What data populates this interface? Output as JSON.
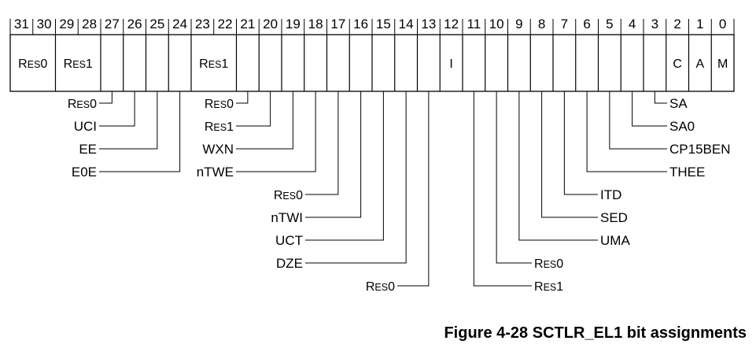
{
  "figure": {
    "caption": "Figure 4-28 SCTLR_EL1 bit assignments"
  },
  "bit_numbers": [
    "31",
    "30",
    "29",
    "28",
    "27",
    "26",
    "25",
    "24",
    "23",
    "22",
    "21",
    "20",
    "19",
    "18",
    "17",
    "16",
    "15",
    "14",
    "13",
    "12",
    "11",
    "10",
    "9",
    "8",
    "7",
    "6",
    "5",
    "4",
    "3",
    "2",
    "1",
    "0"
  ],
  "fields": [
    {
      "hi": 31,
      "lo": 30,
      "label": "RES0"
    },
    {
      "hi": 29,
      "lo": 28,
      "label": "RES1"
    },
    {
      "hi": 27,
      "lo": 27,
      "label": ""
    },
    {
      "hi": 26,
      "lo": 26,
      "label": ""
    },
    {
      "hi": 25,
      "lo": 25,
      "label": ""
    },
    {
      "hi": 24,
      "lo": 24,
      "label": ""
    },
    {
      "hi": 23,
      "lo": 22,
      "label": "RES1"
    },
    {
      "hi": 21,
      "lo": 21,
      "label": ""
    },
    {
      "hi": 20,
      "lo": 20,
      "label": ""
    },
    {
      "hi": 19,
      "lo": 19,
      "label": ""
    },
    {
      "hi": 18,
      "lo": 18,
      "label": ""
    },
    {
      "hi": 17,
      "lo": 17,
      "label": ""
    },
    {
      "hi": 16,
      "lo": 16,
      "label": ""
    },
    {
      "hi": 15,
      "lo": 15,
      "label": ""
    },
    {
      "hi": 14,
      "lo": 14,
      "label": ""
    },
    {
      "hi": 13,
      "lo": 13,
      "label": ""
    },
    {
      "hi": 12,
      "lo": 12,
      "label": "I"
    },
    {
      "hi": 11,
      "lo": 11,
      "label": ""
    },
    {
      "hi": 10,
      "lo": 10,
      "label": ""
    },
    {
      "hi": 9,
      "lo": 9,
      "label": ""
    },
    {
      "hi": 8,
      "lo": 8,
      "label": ""
    },
    {
      "hi": 7,
      "lo": 7,
      "label": ""
    },
    {
      "hi": 6,
      "lo": 6,
      "label": ""
    },
    {
      "hi": 5,
      "lo": 5,
      "label": ""
    },
    {
      "hi": 4,
      "lo": 4,
      "label": ""
    },
    {
      "hi": 3,
      "lo": 3,
      "label": ""
    },
    {
      "hi": 2,
      "lo": 2,
      "label": "C"
    },
    {
      "hi": 1,
      "lo": 1,
      "label": "A"
    },
    {
      "hi": 0,
      "lo": 0,
      "label": "M"
    }
  ],
  "callouts": [
    {
      "bit": 27,
      "label": "RES0",
      "side": "left",
      "row": 0
    },
    {
      "bit": 26,
      "label": "UCI",
      "side": "left",
      "row": 1
    },
    {
      "bit": 25,
      "label": "EE",
      "side": "left",
      "row": 2
    },
    {
      "bit": 24,
      "label": "E0E",
      "side": "left",
      "row": 3
    },
    {
      "bit": 21,
      "label": "RES0",
      "side": "left",
      "row": 0
    },
    {
      "bit": 20,
      "label": "RES1",
      "side": "left",
      "row": 1
    },
    {
      "bit": 19,
      "label": "WXN",
      "side": "left",
      "row": 2
    },
    {
      "bit": 18,
      "label": "nTWE",
      "side": "left",
      "row": 3
    },
    {
      "bit": 17,
      "label": "RES0",
      "side": "left",
      "row": 4
    },
    {
      "bit": 16,
      "label": "nTWI",
      "side": "left",
      "row": 5
    },
    {
      "bit": 15,
      "label": "UCT",
      "side": "left",
      "row": 6
    },
    {
      "bit": 14,
      "label": "DZE",
      "side": "left",
      "row": 7
    },
    {
      "bit": 13,
      "label": "RES0",
      "side": "left",
      "row": 8
    },
    {
      "bit": 11,
      "label": "RES1",
      "side": "right",
      "row": 8
    },
    {
      "bit": 10,
      "label": "RES0",
      "side": "right",
      "row": 7
    },
    {
      "bit": 9,
      "label": "UMA",
      "side": "right",
      "row": 6
    },
    {
      "bit": 8,
      "label": "SED",
      "side": "right",
      "row": 5
    },
    {
      "bit": 7,
      "label": "ITD",
      "side": "right",
      "row": 4
    },
    {
      "bit": 6,
      "label": "THEE",
      "side": "right",
      "row": 3
    },
    {
      "bit": 5,
      "label": "CP15BEN",
      "side": "right",
      "row": 2
    },
    {
      "bit": 4,
      "label": "SA0",
      "side": "right",
      "row": 1
    },
    {
      "bit": 3,
      "label": "SA",
      "side": "right",
      "row": 0
    }
  ]
}
